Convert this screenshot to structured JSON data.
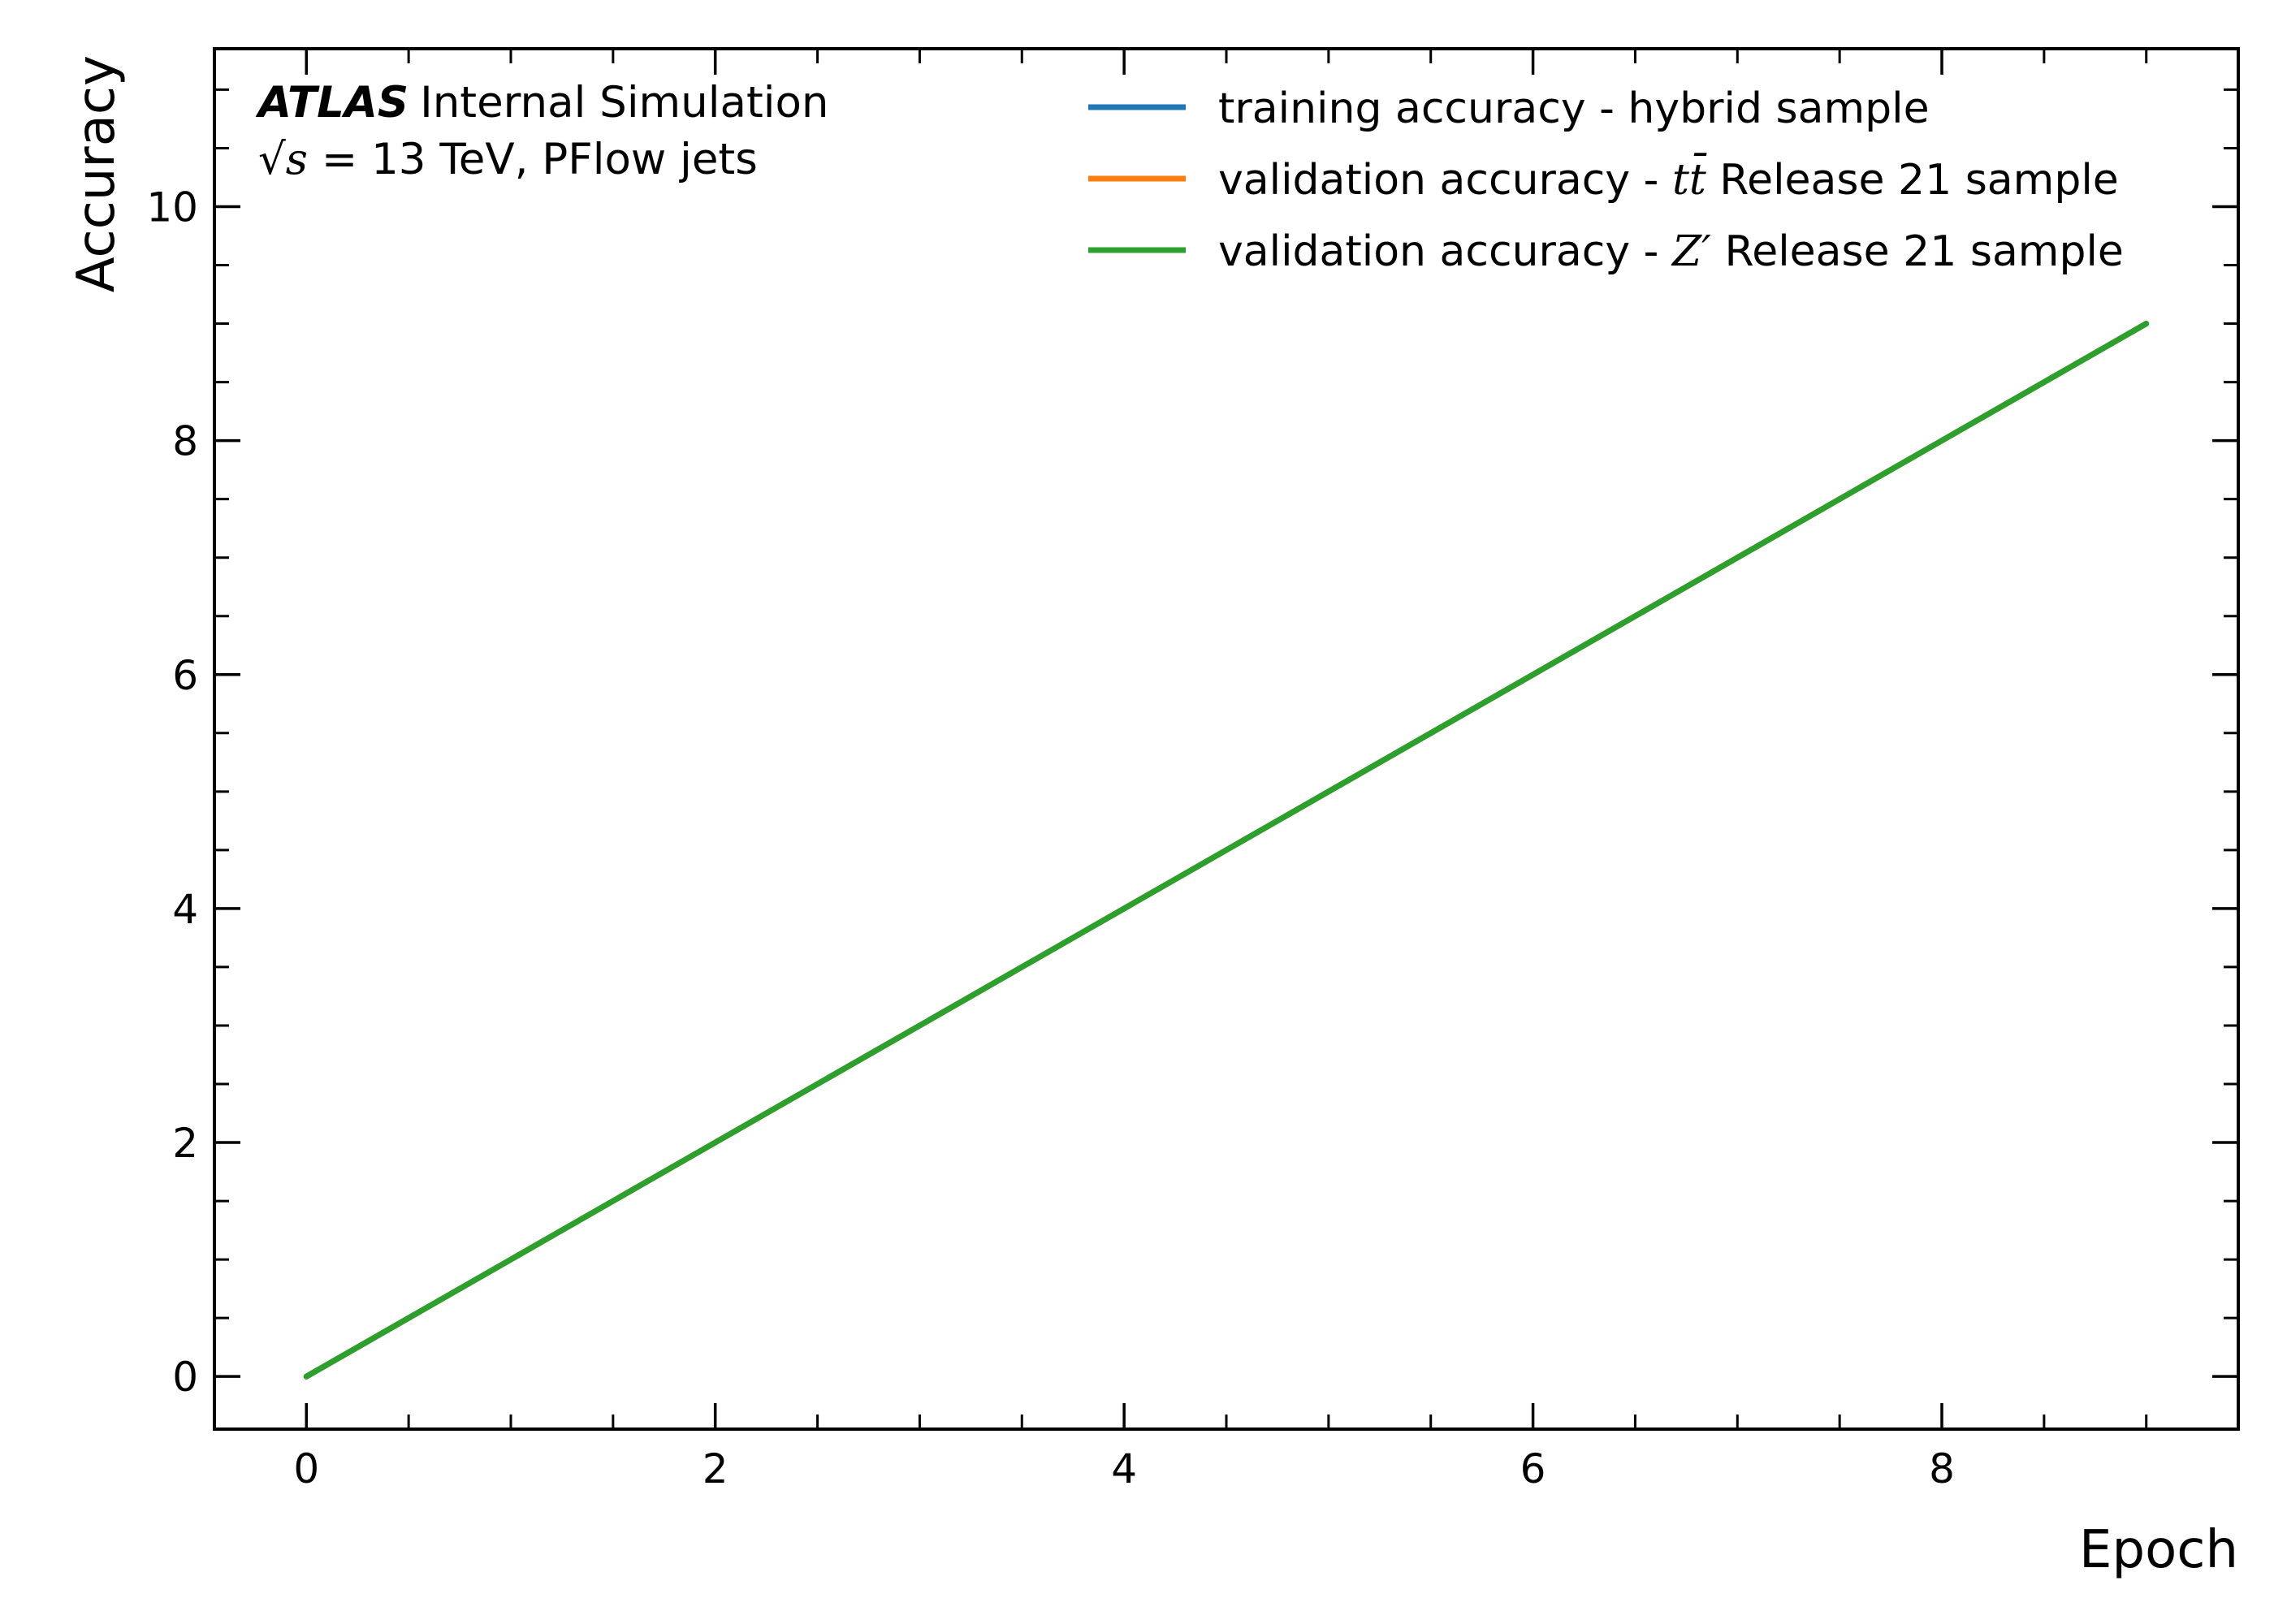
{
  "chart_data": {
    "type": "line",
    "xlabel": "Epoch",
    "ylabel": "Accuracy",
    "xlim": [
      -0.45,
      9.45
    ],
    "ylim": [
      -0.45,
      11.35
    ],
    "x_major_ticks": [
      0,
      2,
      4,
      6,
      8
    ],
    "x_minor_ticks": [
      0.5,
      1,
      1.5,
      2.5,
      3,
      3.5,
      4.5,
      5,
      5.5,
      6.5,
      7,
      7.5,
      8.5,
      9
    ],
    "y_major_ticks": [
      0,
      2,
      4,
      6,
      8,
      10
    ],
    "y_minor_ticks": [
      0.5,
      1,
      1.5,
      2.5,
      3,
      3.5,
      4.5,
      5,
      5.5,
      6.5,
      7,
      7.5,
      8.5,
      9,
      9.5,
      10.5,
      11
    ],
    "x_tick_labels": [
      "0",
      "2",
      "4",
      "6",
      "8"
    ],
    "y_tick_labels": [
      "0",
      "2",
      "4",
      "6",
      "8",
      "10"
    ],
    "grid": false,
    "legend_position": "top-right",
    "series": [
      {
        "name": "training accuracy - hybrid sample",
        "color": "#1f77b4",
        "x": [
          0,
          1,
          2,
          3,
          4,
          5,
          6,
          7,
          8,
          9
        ],
        "y": [
          0,
          1,
          2,
          3,
          4,
          5,
          6,
          7,
          8,
          9
        ]
      },
      {
        "name": "validation accuracy - tt̄ Release 21 sample",
        "color": "#ff7f0e",
        "x": [
          0,
          1,
          2,
          3,
          4,
          5,
          6,
          7,
          8,
          9
        ],
        "y": [
          0,
          1,
          2,
          3,
          4,
          5,
          6,
          7,
          8,
          9
        ]
      },
      {
        "name": "validation accuracy - Z′ Release 21 sample",
        "color": "#2ca02c",
        "x": [
          0,
          1,
          2,
          3,
          4,
          5,
          6,
          7,
          8,
          9
        ],
        "y": [
          0,
          1,
          2,
          3,
          4,
          5,
          6,
          7,
          8,
          9
        ]
      }
    ],
    "legend": {
      "entries": [
        {
          "prefix": "training accuracy - hybrid sample",
          "math": "",
          "suffix": ""
        },
        {
          "prefix": "validation accuracy - ",
          "math": "tt̄",
          "suffix": " Release 21 sample"
        },
        {
          "prefix": "validation accuracy - ",
          "math": "Z′",
          "suffix": " Release 21 sample"
        }
      ]
    },
    "annotation": {
      "experiment": "ATLAS",
      "label": "Internal Simulation",
      "sqrt_symbol": "√",
      "energy_var": "s",
      "energy_rest": " = 13 TeV, PFlow jets"
    }
  }
}
